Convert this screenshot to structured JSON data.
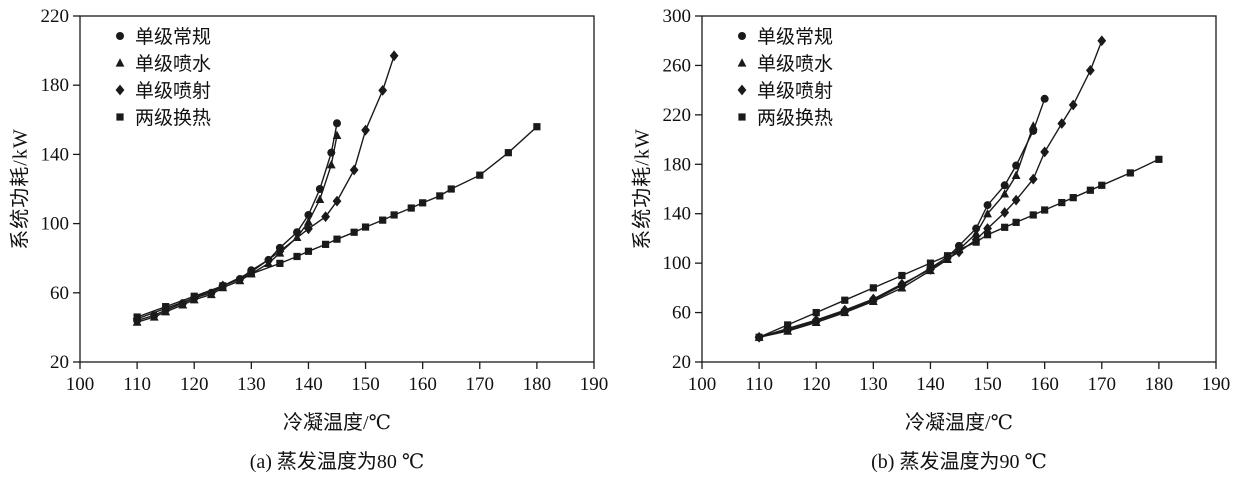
{
  "page": {
    "background": "#ffffff",
    "line_color": "#1a1a1a"
  },
  "chart_data": [
    {
      "type": "line",
      "caption": "(a) 蒸发温度为80 ℃",
      "xlabel": "冷凝温度/℃",
      "ylabel": "系统功耗/kW",
      "xlim": [
        100,
        190
      ],
      "ylim": [
        20,
        220
      ],
      "xticks": [
        100,
        110,
        120,
        130,
        140,
        150,
        160,
        170,
        180,
        190
      ],
      "yticks": [
        20,
        60,
        100,
        140,
        180,
        220
      ],
      "legend_position": "upper-left",
      "grid": false,
      "series": [
        {
          "name": "单级常规",
          "marker": "circle",
          "points": [
            [
              110,
              44
            ],
            [
              113,
              47
            ],
            [
              115,
              50
            ],
            [
              118,
              54
            ],
            [
              120,
              57
            ],
            [
              123,
              60
            ],
            [
              125,
              64
            ],
            [
              128,
              68
            ],
            [
              130,
              73
            ],
            [
              133,
              79
            ],
            [
              135,
              86
            ],
            [
              138,
              95
            ],
            [
              140,
              105
            ],
            [
              142,
              120
            ],
            [
              144,
              141
            ],
            [
              145,
              158
            ]
          ]
        },
        {
          "name": "单级喷水",
          "marker": "triangle",
          "points": [
            [
              110,
              43
            ],
            [
              113,
              46
            ],
            [
              115,
              49
            ],
            [
              118,
              53
            ],
            [
              120,
              56
            ],
            [
              123,
              59
            ],
            [
              125,
              63
            ],
            [
              128,
              67
            ],
            [
              130,
              71
            ],
            [
              133,
              77
            ],
            [
              135,
              83
            ],
            [
              138,
              92
            ],
            [
              140,
              101
            ],
            [
              142,
              114
            ],
            [
              144,
              134
            ],
            [
              145,
              151
            ]
          ]
        },
        {
          "name": "单级喷射",
          "marker": "diamond",
          "points": [
            [
              110,
              45
            ],
            [
              115,
              51
            ],
            [
              120,
              57
            ],
            [
              125,
              64
            ],
            [
              130,
              72
            ],
            [
              135,
              84
            ],
            [
              140,
              97
            ],
            [
              143,
              104
            ],
            [
              145,
              113
            ],
            [
              148,
              131
            ],
            [
              150,
              154
            ],
            [
              153,
              177
            ],
            [
              155,
              197
            ]
          ]
        },
        {
          "name": "两级换热",
          "marker": "square",
          "points": [
            [
              110,
              46
            ],
            [
              115,
              52
            ],
            [
              120,
              58
            ],
            [
              125,
              64
            ],
            [
              130,
              71
            ],
            [
              135,
              77
            ],
            [
              138,
              81
            ],
            [
              140,
              84
            ],
            [
              143,
              88
            ],
            [
              145,
              91
            ],
            [
              148,
              95
            ],
            [
              150,
              98
            ],
            [
              153,
              102
            ],
            [
              155,
              105
            ],
            [
              158,
              109
            ],
            [
              160,
              112
            ],
            [
              163,
              116
            ],
            [
              165,
              120
            ],
            [
              170,
              128
            ],
            [
              175,
              141
            ],
            [
              180,
              156
            ]
          ]
        }
      ]
    },
    {
      "type": "line",
      "caption": "(b) 蒸发温度为90 ℃",
      "xlabel": "冷凝温度/℃",
      "ylabel": "系统功耗/kW",
      "xlim": [
        100,
        190
      ],
      "ylim": [
        20,
        300
      ],
      "xticks": [
        100,
        110,
        120,
        130,
        140,
        150,
        160,
        170,
        180,
        190
      ],
      "yticks": [
        20,
        60,
        100,
        140,
        180,
        220,
        260,
        300
      ],
      "legend_position": "upper-left",
      "grid": false,
      "series": [
        {
          "name": "单级常规",
          "marker": "circle",
          "points": [
            [
              110,
              40
            ],
            [
              115,
              46
            ],
            [
              120,
              53
            ],
            [
              125,
              61
            ],
            [
              130,
              70
            ],
            [
              135,
              82
            ],
            [
              140,
              96
            ],
            [
              143,
              105
            ],
            [
              145,
              114
            ],
            [
              148,
              128
            ],
            [
              150,
              147
            ],
            [
              153,
              163
            ],
            [
              155,
              179
            ],
            [
              158,
              207
            ],
            [
              160,
              233
            ]
          ]
        },
        {
          "name": "单级喷水",
          "marker": "triangle",
          "points": [
            [
              110,
              40
            ],
            [
              115,
              45
            ],
            [
              120,
              52
            ],
            [
              125,
              60
            ],
            [
              130,
              69
            ],
            [
              135,
              80
            ],
            [
              140,
              94
            ],
            [
              143,
              103
            ],
            [
              145,
              111
            ],
            [
              148,
              124
            ],
            [
              150,
              140
            ],
            [
              153,
              156
            ],
            [
              155,
              171
            ],
            [
              158,
              211
            ]
          ]
        },
        {
          "name": "单级喷射",
          "marker": "diamond",
          "points": [
            [
              110,
              40
            ],
            [
              115,
              47
            ],
            [
              120,
              54
            ],
            [
              125,
              62
            ],
            [
              130,
              71
            ],
            [
              135,
              83
            ],
            [
              140,
              95
            ],
            [
              145,
              109
            ],
            [
              148,
              119
            ],
            [
              150,
              128
            ],
            [
              153,
              141
            ],
            [
              155,
              151
            ],
            [
              158,
              168
            ],
            [
              160,
              190
            ],
            [
              163,
              213
            ],
            [
              165,
              228
            ],
            [
              168,
              256
            ],
            [
              170,
              280
            ]
          ]
        },
        {
          "name": "两级换热",
          "marker": "square",
          "points": [
            [
              110,
              40
            ],
            [
              115,
              50
            ],
            [
              120,
              60
            ],
            [
              125,
              70
            ],
            [
              130,
              80
            ],
            [
              135,
              90
            ],
            [
              140,
              100
            ],
            [
              143,
              106
            ],
            [
              145,
              111
            ],
            [
              148,
              117
            ],
            [
              150,
              123
            ],
            [
              153,
              129
            ],
            [
              155,
              133
            ],
            [
              158,
              139
            ],
            [
              160,
              143
            ],
            [
              163,
              149
            ],
            [
              165,
              153
            ],
            [
              168,
              159
            ],
            [
              170,
              163
            ],
            [
              175,
              173
            ],
            [
              180,
              184
            ]
          ]
        }
      ]
    }
  ]
}
